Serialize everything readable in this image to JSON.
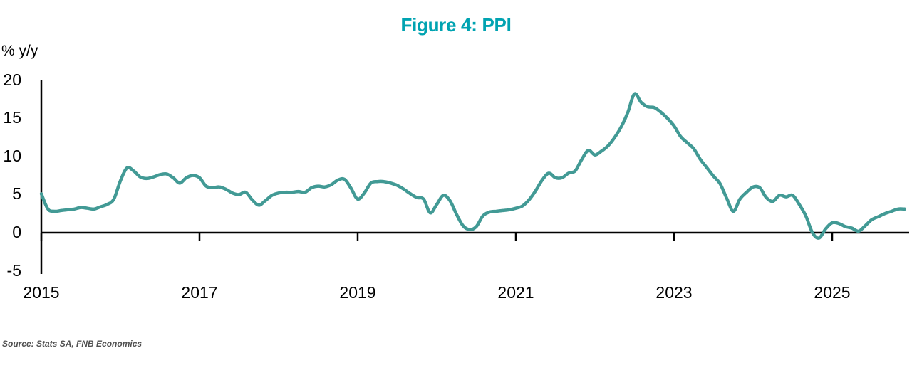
{
  "title": "Figure 4: PPI",
  "source_note": "Source: Stats SA, FNB Economics",
  "colors": {
    "line": "#429A95",
    "title": "#00A3B1",
    "axis": "#000000",
    "source_text": "#505050"
  },
  "chart_data": {
    "type": "line",
    "title": "Figure 4: PPI",
    "xlabel": "",
    "ylabel": "% y/y",
    "ylim": [
      -5,
      20
    ],
    "y_ticks": [
      20,
      15,
      10,
      5,
      0,
      -5
    ],
    "x_tick_labels": [
      "2015",
      "2017",
      "2019",
      "2021",
      "2023",
      "2025"
    ],
    "grid": false,
    "legend_position": "none",
    "series": [
      {
        "name": "PPI % y/y",
        "x_start": "2015-01",
        "frequency": "monthly",
        "values": [
          5.1,
          3.1,
          2.8,
          2.9,
          3.0,
          3.1,
          3.3,
          3.2,
          3.1,
          3.4,
          3.7,
          4.4,
          6.8,
          8.5,
          8.1,
          7.3,
          7.1,
          7.3,
          7.6,
          7.7,
          7.2,
          6.5,
          7.2,
          7.5,
          7.2,
          6.1,
          5.9,
          6.0,
          5.7,
          5.2,
          5.0,
          5.3,
          4.3,
          3.6,
          4.2,
          4.9,
          5.2,
          5.3,
          5.3,
          5.4,
          5.3,
          5.9,
          6.1,
          6.0,
          6.3,
          6.9,
          7.0,
          5.8,
          4.4,
          5.2,
          6.5,
          6.7,
          6.7,
          6.5,
          6.2,
          5.7,
          5.1,
          4.6,
          4.4,
          2.6,
          3.7,
          4.9,
          4.2,
          2.4,
          0.9,
          0.4,
          0.8,
          2.2,
          2.7,
          2.8,
          2.9,
          3.0,
          3.2,
          3.5,
          4.3,
          5.5,
          6.9,
          7.8,
          7.2,
          7.2,
          7.8,
          8.1,
          9.6,
          10.8,
          10.2,
          10.7,
          11.4,
          12.5,
          13.9,
          15.8,
          18.2,
          17.1,
          16.5,
          16.4,
          15.8,
          15.0,
          14.0,
          12.6,
          11.8,
          11.0,
          9.6,
          8.5,
          7.4,
          6.4,
          4.5,
          2.8,
          4.4,
          5.3,
          6.0,
          5.9,
          4.6,
          4.1,
          4.9,
          4.7,
          4.9,
          3.7,
          2.2,
          0.0,
          -0.7,
          0.5,
          1.3,
          1.2,
          0.8,
          0.6,
          0.2,
          0.9,
          1.7,
          2.1,
          2.5,
          2.8,
          3.1,
          3.1
        ]
      }
    ]
  }
}
